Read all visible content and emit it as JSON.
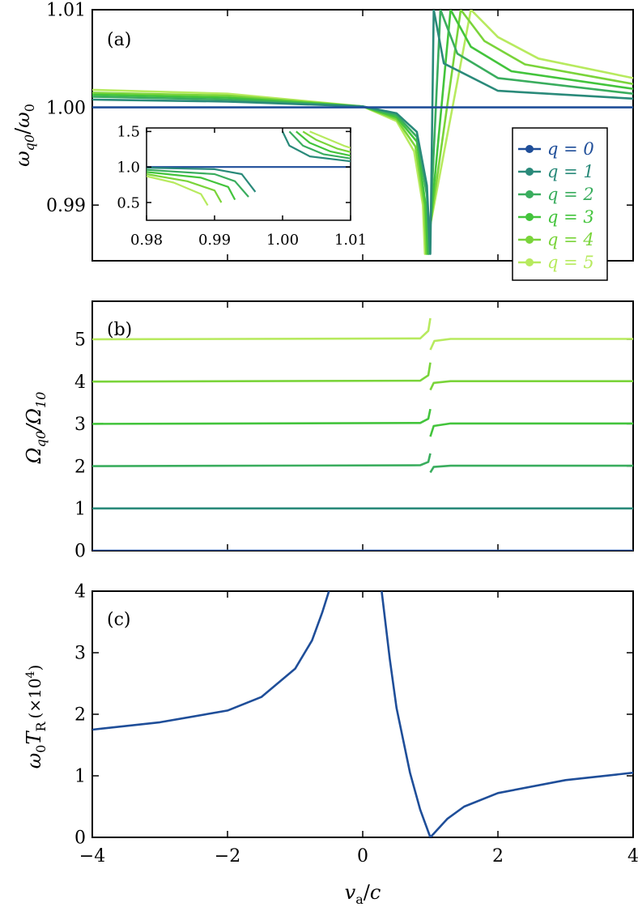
{
  "colors": {
    "q0": "#1f4e99",
    "q1": "#2a8a7a",
    "q2": "#3aad5e",
    "q3": "#43c43c",
    "q4": "#7ad43a",
    "q5": "#b7ea5e",
    "line_c": "#1f4e99"
  },
  "chart_data": [
    {
      "id": "a",
      "type": "line",
      "label": "(a)",
      "ylabel": "ω_q0/ω_0",
      "xlim": [
        -4,
        4
      ],
      "ylim": [
        0.9843,
        1.01
      ],
      "yticks": [
        "0.99",
        "1.00",
        "1.01"
      ],
      "legend": {
        "placement": "right",
        "entries": [
          "q = 0",
          "q = 1",
          "q = 2",
          "q = 3",
          "q = 4",
          "q = 5"
        ]
      },
      "series": [
        {
          "q": 0,
          "points": [
            [
              -4,
              1.0
            ],
            [
              4,
              1.0
            ]
          ]
        },
        {
          "q": 1,
          "points": [
            [
              -4,
              1.0008
            ],
            [
              -2,
              1.0006
            ],
            [
              0,
              1.0001
            ],
            [
              0.5,
              0.9994
            ],
            [
              0.8,
              0.9975
            ],
            [
              0.95,
              0.992
            ],
            [
              1.0,
              0.985
            ],
            [
              1.05,
              1.01
            ],
            [
              1.2,
              1.0045
            ],
            [
              2,
              1.0017
            ],
            [
              4,
              1.0009
            ]
          ]
        },
        {
          "q": 2,
          "points": [
            [
              -4,
              1.0011
            ],
            [
              -2,
              1.0008
            ],
            [
              0,
              1.0001
            ],
            [
              0.5,
              0.9992
            ],
            [
              0.8,
              0.997
            ],
            [
              0.95,
              0.991
            ],
            [
              0.98,
              0.985
            ],
            [
              1.15,
              1.01
            ],
            [
              1.4,
              1.0055
            ],
            [
              2,
              1.003
            ],
            [
              4,
              1.0014
            ]
          ]
        },
        {
          "q": 3,
          "points": [
            [
              -4,
              1.0013
            ],
            [
              -2,
              1.001
            ],
            [
              0,
              1.0001
            ],
            [
              0.5,
              0.999
            ],
            [
              0.8,
              0.9965
            ],
            [
              0.93,
              0.99
            ],
            [
              0.96,
              0.985
            ],
            [
              1.3,
              1.01
            ],
            [
              1.6,
              1.0062
            ],
            [
              2.2,
              1.0037
            ],
            [
              4,
              1.0019
            ]
          ]
        },
        {
          "q": 4,
          "points": [
            [
              -4,
              1.0015
            ],
            [
              -2,
              1.0012
            ],
            [
              0,
              1.0001
            ],
            [
              0.5,
              0.9988
            ],
            [
              0.78,
              0.996
            ],
            [
              0.91,
              0.99
            ],
            [
              0.94,
              0.985
            ],
            [
              1.45,
              1.01
            ],
            [
              1.8,
              1.0068
            ],
            [
              2.4,
              1.0044
            ],
            [
              4,
              1.0024
            ]
          ]
        },
        {
          "q": 5,
          "points": [
            [
              -4,
              1.0018
            ],
            [
              -2,
              1.0014
            ],
            [
              0,
              1.0001
            ],
            [
              0.5,
              0.9986
            ],
            [
              0.76,
              0.9955
            ],
            [
              0.89,
              0.99
            ],
            [
              0.92,
              0.985
            ],
            [
              1.6,
              1.01
            ],
            [
              2.0,
              1.0072
            ],
            [
              2.6,
              1.005
            ],
            [
              4,
              1.003
            ]
          ]
        }
      ],
      "inset": {
        "xlim": [
          0.98,
          1.01
        ],
        "ylim": [
          0.25,
          1.55
        ],
        "xticks": [
          "0.98",
          "0.99",
          "1.00",
          "1.01"
        ],
        "yticks": [
          "0.5",
          "1.0",
          "1.5"
        ],
        "series": [
          {
            "q": 0,
            "points": [
              [
                0.98,
                1.0
              ],
              [
                1.01,
                1.0
              ]
            ]
          },
          {
            "q": 1,
            "points": [
              [
                0.98,
                0.99
              ],
              [
                0.99,
                0.97
              ],
              [
                0.994,
                0.9
              ],
              [
                0.996,
                0.65
              ]
            ]
          },
          {
            "q": 1,
            "points": [
              [
                1.0,
                1.5
              ],
              [
                1.001,
                1.3
              ],
              [
                1.004,
                1.15
              ],
              [
                1.01,
                1.08
              ]
            ]
          },
          {
            "q": 2,
            "points": [
              [
                0.98,
                0.96
              ],
              [
                0.99,
                0.9
              ],
              [
                0.993,
                0.8
              ],
              [
                0.995,
                0.58
              ]
            ]
          },
          {
            "q": 2,
            "points": [
              [
                1.001,
                1.5
              ],
              [
                1.003,
                1.3
              ],
              [
                1.006,
                1.18
              ],
              [
                1.01,
                1.12
              ]
            ]
          },
          {
            "q": 3,
            "points": [
              [
                0.98,
                0.93
              ],
              [
                0.988,
                0.85
              ],
              [
                0.992,
                0.72
              ],
              [
                0.993,
                0.54
              ]
            ]
          },
          {
            "q": 3,
            "points": [
              [
                1.002,
                1.5
              ],
              [
                1.004,
                1.34
              ],
              [
                1.007,
                1.22
              ],
              [
                1.01,
                1.16
              ]
            ]
          },
          {
            "q": 4,
            "points": [
              [
                0.98,
                0.9
              ],
              [
                0.986,
                0.8
              ],
              [
                0.99,
                0.67
              ],
              [
                0.991,
                0.5
              ]
            ]
          },
          {
            "q": 4,
            "points": [
              [
                1.003,
                1.5
              ],
              [
                1.005,
                1.38
              ],
              [
                1.008,
                1.26
              ],
              [
                1.01,
                1.21
              ]
            ]
          },
          {
            "q": 5,
            "points": [
              [
                0.98,
                0.87
              ],
              [
                0.984,
                0.78
              ],
              [
                0.988,
                0.62
              ],
              [
                0.989,
                0.46
              ]
            ]
          },
          {
            "q": 5,
            "points": [
              [
                1.004,
                1.5
              ],
              [
                1.006,
                1.42
              ],
              [
                1.009,
                1.3
              ],
              [
                1.01,
                1.27
              ]
            ]
          }
        ]
      }
    },
    {
      "id": "b",
      "type": "line",
      "label": "(b)",
      "ylabel": "Ω_q0/Ω_10",
      "xlim": [
        -4,
        4
      ],
      "ylim": [
        0,
        5.9
      ],
      "yticks": [
        "0",
        "1",
        "2",
        "3",
        "4",
        "5"
      ],
      "series": [
        {
          "q": 0,
          "points": [
            [
              -4,
              0
            ],
            [
              4,
              0
            ]
          ]
        },
        {
          "q": 1,
          "points": [
            [
              -4,
              1
            ],
            [
              4,
              1
            ]
          ]
        },
        {
          "q": 2,
          "points": [
            [
              -4,
              2.0
            ],
            [
              0.85,
              2.02
            ],
            [
              0.97,
              2.1
            ],
            [
              1.0,
              2.3
            ]
          ]
        },
        {
          "q": 2,
          "points": [
            [
              1.0,
              1.85
            ],
            [
              1.05,
              1.98
            ],
            [
              1.3,
              2.01
            ],
            [
              4,
              2.01
            ]
          ]
        },
        {
          "q": 3,
          "points": [
            [
              -4,
              3.0
            ],
            [
              0.85,
              3.02
            ],
            [
              0.97,
              3.12
            ],
            [
              1.0,
              3.35
            ]
          ]
        },
        {
          "q": 3,
          "points": [
            [
              1.0,
              2.7
            ],
            [
              1.05,
              2.95
            ],
            [
              1.3,
              3.01
            ],
            [
              4,
              3.01
            ]
          ]
        },
        {
          "q": 4,
          "points": [
            [
              -4,
              4.0
            ],
            [
              0.85,
              4.02
            ],
            [
              0.97,
              4.15
            ],
            [
              1.0,
              4.45
            ]
          ]
        },
        {
          "q": 4,
          "points": [
            [
              1.0,
              3.8
            ],
            [
              1.05,
              3.97
            ],
            [
              1.3,
              4.01
            ],
            [
              4,
              4.01
            ]
          ]
        },
        {
          "q": 5,
          "points": [
            [
              -4,
              5.0
            ],
            [
              0.85,
              5.02
            ],
            [
              0.97,
              5.2
            ],
            [
              1.0,
              5.5
            ]
          ]
        },
        {
          "q": 5,
          "points": [
            [
              1.0,
              4.75
            ],
            [
              1.06,
              4.96
            ],
            [
              1.3,
              5.01
            ],
            [
              4,
              5.01
            ]
          ]
        }
      ]
    },
    {
      "id": "c",
      "type": "line",
      "label": "(c)",
      "ylabel": "ω_0T_R (×10⁴)",
      "xlabel": "v_a/c",
      "xlim": [
        -4,
        4
      ],
      "ylim": [
        0,
        4
      ],
      "xticks": [
        "−4",
        "−2",
        "0",
        "2",
        "4"
      ],
      "yticks": [
        "0",
        "1",
        "2",
        "3",
        "4"
      ],
      "series": [
        {
          "name": "",
          "points": [
            [
              -4,
              1.75
            ],
            [
              -3,
              1.87
            ],
            [
              -2,
              2.06
            ],
            [
              -1.5,
              2.28
            ],
            [
              -1,
              2.74
            ],
            [
              -0.75,
              3.2
            ],
            [
              -0.6,
              3.65
            ],
            [
              -0.5,
              4.0
            ]
          ]
        },
        {
          "name": "",
          "points": [
            [
              0.28,
              4.0
            ],
            [
              0.4,
              2.9
            ],
            [
              0.5,
              2.1
            ],
            [
              0.7,
              1.05
            ],
            [
              0.85,
              0.45
            ],
            [
              1.0,
              0.0
            ],
            [
              1.25,
              0.3
            ],
            [
              1.5,
              0.5
            ],
            [
              2.0,
              0.72
            ],
            [
              3.0,
              0.93
            ],
            [
              4.0,
              1.05
            ]
          ]
        }
      ]
    }
  ]
}
